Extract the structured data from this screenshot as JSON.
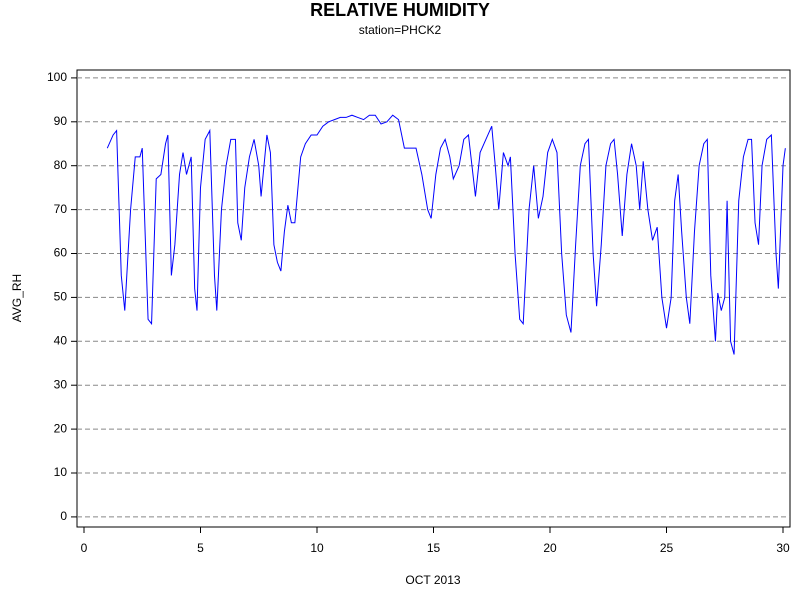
{
  "chart_data": {
    "type": "line",
    "title": "RELATIVE HUMIDITY",
    "subtitle": "station=PHCK2",
    "x_label": "OCT 2013",
    "y_label": "AVG_RH",
    "xlim": [
      -0.3,
      30.3
    ],
    "xticks": [
      0,
      5,
      10,
      15,
      20,
      25,
      30
    ],
    "ylim": [
      -2.3,
      101.8
    ],
    "yticks": [
      0,
      10,
      20,
      30,
      40,
      50,
      60,
      70,
      80,
      90,
      100
    ],
    "grid": true,
    "x": [
      1.0,
      1.25,
      1.4,
      1.6,
      1.75,
      2.0,
      2.2,
      2.4,
      2.5,
      2.75,
      2.9,
      3.1,
      3.3,
      3.5,
      3.6,
      3.75,
      3.9,
      4.1,
      4.25,
      4.4,
      4.6,
      4.75,
      4.85,
      5.0,
      5.2,
      5.4,
      5.6,
      5.7,
      5.9,
      6.1,
      6.3,
      6.5,
      6.6,
      6.75,
      6.9,
      7.1,
      7.3,
      7.5,
      7.6,
      7.85,
      8.0,
      8.15,
      8.3,
      8.45,
      8.6,
      8.75,
      8.9,
      9.05,
      9.3,
      9.5,
      9.75,
      10.0,
      10.25,
      10.5,
      10.75,
      11.0,
      11.25,
      11.5,
      11.75,
      12.0,
      12.25,
      12.5,
      12.75,
      13.0,
      13.25,
      13.5,
      13.75,
      14.0,
      14.25,
      14.5,
      14.75,
      14.9,
      15.1,
      15.3,
      15.5,
      15.7,
      15.85,
      16.1,
      16.3,
      16.5,
      16.65,
      16.8,
      17.0,
      17.25,
      17.5,
      17.65,
      17.8,
      18.0,
      18.2,
      18.3,
      18.5,
      18.7,
      18.85,
      19.1,
      19.3,
      19.5,
      19.7,
      19.9,
      20.1,
      20.3,
      20.5,
      20.7,
      20.9,
      21.1,
      21.3,
      21.5,
      21.65,
      21.85,
      22.0,
      22.2,
      22.4,
      22.6,
      22.75,
      22.9,
      23.1,
      23.3,
      23.5,
      23.7,
      23.85,
      24.0,
      24.2,
      24.4,
      24.6,
      24.8,
      25.0,
      25.2,
      25.35,
      25.5,
      25.65,
      25.85,
      26.0,
      26.2,
      26.4,
      26.6,
      26.75,
      26.9,
      27.1,
      27.2,
      27.35,
      27.5,
      27.6,
      27.75,
      27.9,
      28.1,
      28.3,
      28.5,
      28.65,
      28.8,
      28.95,
      29.1,
      29.3,
      29.5,
      29.7,
      29.8,
      30.0,
      30.1
    ],
    "series": [
      {
        "name": "AVG_RH",
        "color": "#0000ff",
        "values": [
          84,
          87,
          88,
          55,
          47,
          70,
          82,
          82,
          84,
          45,
          44,
          77,
          78,
          85,
          87,
          55,
          62,
          78,
          83,
          78,
          82,
          52,
          47,
          75,
          86,
          88,
          55,
          47,
          70,
          80,
          86,
          86,
          67,
          63,
          75,
          82,
          86,
          80,
          73,
          87,
          83,
          62,
          58,
          56,
          65,
          71,
          67,
          67,
          82,
          85,
          87,
          87,
          89,
          90,
          90.5,
          91,
          91,
          91.5,
          91,
          90.5,
          91.5,
          91.5,
          89.5,
          90,
          91.5,
          90.5,
          84,
          84,
          84,
          78,
          70,
          68,
          78,
          84,
          86,
          82,
          77,
          80,
          86,
          87,
          80,
          73,
          83,
          86,
          89,
          80,
          70,
          83,
          80,
          82,
          60,
          45,
          44,
          70,
          80,
          68,
          73,
          83,
          86,
          83,
          60,
          46,
          42,
          62,
          80,
          85,
          86,
          60,
          48,
          62,
          80,
          85,
          86,
          78,
          64,
          78,
          85,
          80,
          70,
          81,
          70,
          63,
          66,
          50,
          43,
          50,
          72,
          78,
          65,
          50,
          44,
          65,
          80,
          85,
          86,
          55,
          40,
          51,
          47,
          50,
          72,
          40,
          37,
          72,
          82,
          86,
          86,
          67,
          62,
          80,
          86,
          87,
          60,
          52,
          80,
          84
        ]
      }
    ]
  }
}
